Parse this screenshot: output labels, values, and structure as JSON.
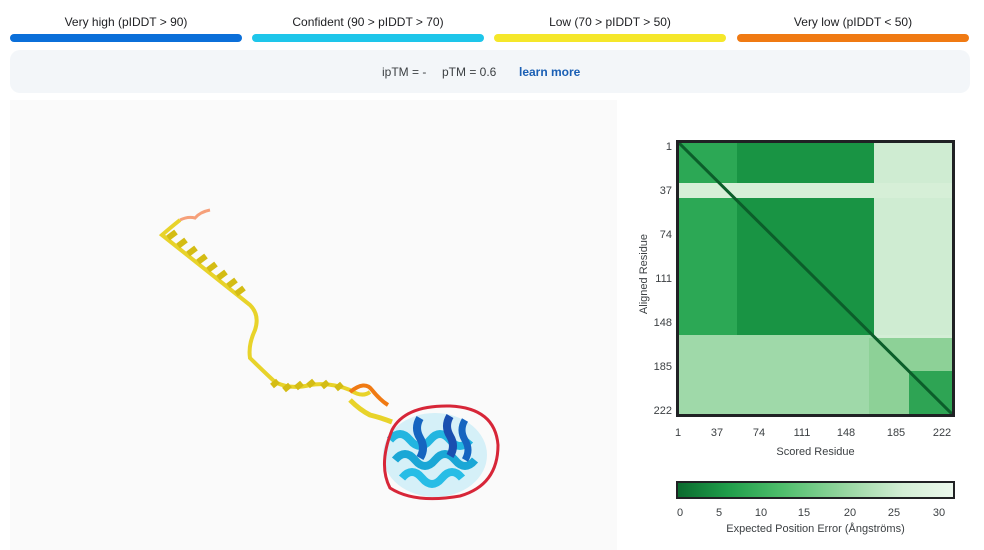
{
  "legend": [
    {
      "label": "Very high (pIDDT > 90)",
      "color": "#0b6fd9"
    },
    {
      "label": "Confident (90 > pIDDT > 70)",
      "color": "#1ec6ea"
    },
    {
      "label": "Low (70 > pIDDT > 50)",
      "color": "#f5e72a"
    },
    {
      "label": "Very low (pIDDT < 50)",
      "color": "#f07a13"
    }
  ],
  "metrics": {
    "iptm": "ipTM = -",
    "ptm": "pTM = 0.6",
    "learn_more": "learn more"
  },
  "viewer": {
    "structure_icon": "protein-structure-3d",
    "highlight_color": "#d72638"
  },
  "pae": {
    "y_ticks": [
      "1",
      "37",
      "74",
      "111",
      "148",
      "185",
      "222"
    ],
    "x_ticks": [
      "1",
      "37",
      "74",
      "111",
      "148",
      "185",
      "222"
    ],
    "y_label": "Aligned Residue",
    "x_label": "Scored Residue",
    "colorbar_ticks": [
      "0",
      "5",
      "10",
      "15",
      "20",
      "25",
      "30"
    ],
    "colorbar_label": "Expected Position Error (Ångströms)"
  }
}
